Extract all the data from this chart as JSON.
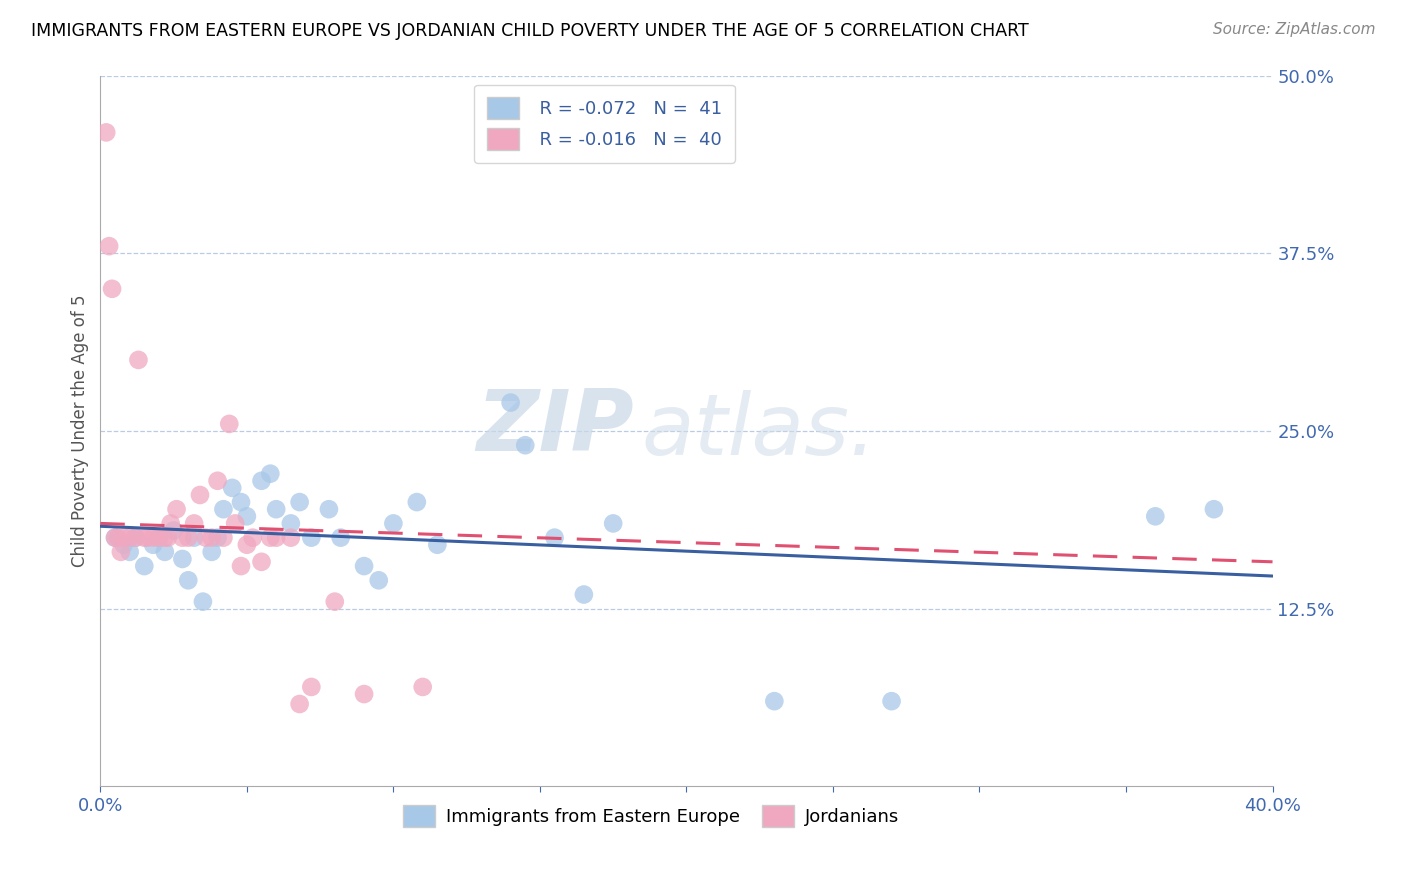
{
  "title": "IMMIGRANTS FROM EASTERN EUROPE VS JORDANIAN CHILD POVERTY UNDER THE AGE OF 5 CORRELATION CHART",
  "source": "Source: ZipAtlas.com",
  "ylabel": "Child Poverty Under the Age of 5",
  "xlim": [
    0.0,
    0.4
  ],
  "ylim": [
    0.0,
    0.5
  ],
  "xticks": [
    0.0,
    0.05,
    0.1,
    0.15,
    0.2,
    0.25,
    0.3,
    0.35,
    0.4
  ],
  "xtick_labels": [
    "0.0%",
    "",
    "",
    "",
    "",
    "",
    "",
    "",
    "40.0%"
  ],
  "ytick_positions": [
    0.125,
    0.25,
    0.375,
    0.5
  ],
  "ytick_labels": [
    "12.5%",
    "25.0%",
    "37.5%",
    "50.0%"
  ],
  "legend_R_blue": "R = -0.072",
  "legend_N_blue": "N =  41",
  "legend_R_pink": "R = -0.016",
  "legend_N_pink": "N =  40",
  "blue_color": "#a8c8e8",
  "pink_color": "#f0a8c0",
  "blue_line_color": "#3a5fa0",
  "pink_line_color": "#e05070",
  "watermark_zip": "ZIP",
  "watermark_atlas": "atlas.",
  "blue_scatter_x": [
    0.005,
    0.008,
    0.01,
    0.012,
    0.015,
    0.018,
    0.02,
    0.022,
    0.025,
    0.028,
    0.03,
    0.032,
    0.035,
    0.038,
    0.04,
    0.042,
    0.045,
    0.048,
    0.05,
    0.055,
    0.058,
    0.06,
    0.065,
    0.068,
    0.072,
    0.078,
    0.082,
    0.09,
    0.095,
    0.1,
    0.108,
    0.115,
    0.14,
    0.145,
    0.155,
    0.165,
    0.175,
    0.23,
    0.27,
    0.36,
    0.38
  ],
  "blue_scatter_y": [
    0.175,
    0.17,
    0.165,
    0.175,
    0.155,
    0.17,
    0.175,
    0.165,
    0.18,
    0.16,
    0.145,
    0.175,
    0.13,
    0.165,
    0.175,
    0.195,
    0.21,
    0.2,
    0.19,
    0.215,
    0.22,
    0.195,
    0.185,
    0.2,
    0.175,
    0.195,
    0.175,
    0.155,
    0.145,
    0.185,
    0.2,
    0.17,
    0.27,
    0.24,
    0.175,
    0.135,
    0.185,
    0.06,
    0.06,
    0.19,
    0.195
  ],
  "pink_scatter_x": [
    0.002,
    0.003,
    0.004,
    0.005,
    0.006,
    0.007,
    0.008,
    0.01,
    0.012,
    0.013,
    0.015,
    0.016,
    0.018,
    0.02,
    0.022,
    0.023,
    0.024,
    0.026,
    0.028,
    0.03,
    0.032,
    0.034,
    0.036,
    0.038,
    0.04,
    0.042,
    0.044,
    0.046,
    0.048,
    0.05,
    0.052,
    0.055,
    0.058,
    0.06,
    0.065,
    0.068,
    0.072,
    0.08,
    0.09,
    0.11
  ],
  "pink_scatter_y": [
    0.46,
    0.38,
    0.35,
    0.175,
    0.175,
    0.165,
    0.175,
    0.175,
    0.175,
    0.3,
    0.175,
    0.175,
    0.175,
    0.175,
    0.175,
    0.175,
    0.185,
    0.195,
    0.175,
    0.175,
    0.185,
    0.205,
    0.175,
    0.175,
    0.215,
    0.175,
    0.255,
    0.185,
    0.155,
    0.17,
    0.175,
    0.158,
    0.175,
    0.175,
    0.175,
    0.058,
    0.07,
    0.13,
    0.065,
    0.07
  ],
  "blue_trendline_x": [
    0.0,
    0.4
  ],
  "blue_trendline_y": [
    0.183,
    0.148
  ],
  "pink_trendline_x": [
    0.0,
    0.4
  ],
  "pink_trendline_y": [
    0.185,
    0.158
  ]
}
